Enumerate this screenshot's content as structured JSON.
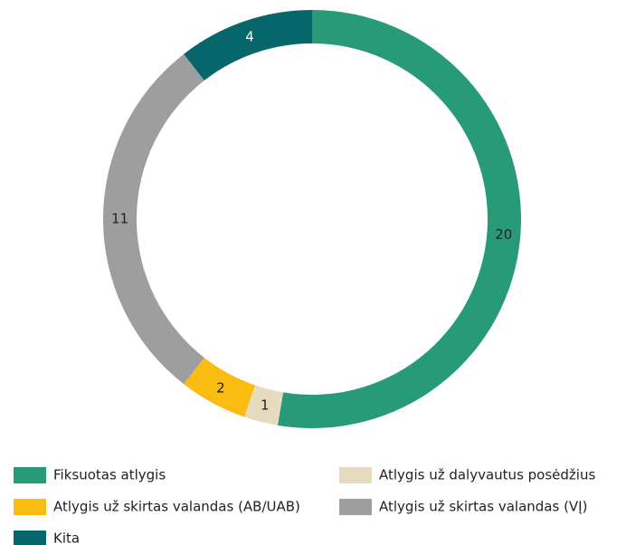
{
  "chart_data": {
    "type": "donut",
    "categories": [
      "Fiksuotas atlygis",
      "Atlygis už dalyvautus posėdžius",
      "Atlygis už skirtas valandas (AB/UAB)",
      "Atlygis už skirtas valandas (VĮ)",
      "Kita"
    ],
    "values": [
      20,
      1,
      2,
      11,
      4
    ],
    "colors": [
      "#279b77",
      "#e6dbbe",
      "#fbbc12",
      "#9e9e9e",
      "#06666a"
    ],
    "legend": "bottom"
  }
}
